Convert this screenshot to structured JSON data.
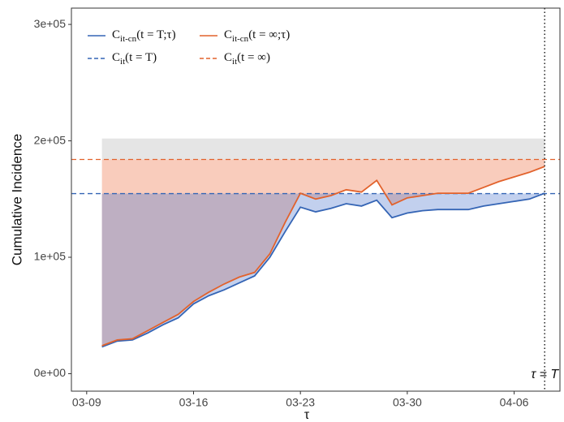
{
  "chart_data": {
    "type": "line",
    "x_label": "τ",
    "y_label": "Cumulative Incidence",
    "x": [
      "03-10",
      "03-11",
      "03-12",
      "03-13",
      "03-14",
      "03-15",
      "03-16",
      "03-17",
      "03-18",
      "03-19",
      "03-20",
      "03-21",
      "03-22",
      "03-23",
      "03-24",
      "03-25",
      "03-26",
      "03-27",
      "03-28",
      "03-29",
      "03-30",
      "03-31",
      "04-01",
      "04-02",
      "04-03",
      "04-04",
      "04-05",
      "04-06",
      "04-07",
      "04-08"
    ],
    "xlim": [
      "03-08",
      "04-09"
    ],
    "xticks": [
      "03-09",
      "03-16",
      "03-23",
      "03-30",
      "04-06"
    ],
    "ylim": [
      -15000,
      314000
    ],
    "yticks": [
      {
        "value": 0,
        "label": "0e+00"
      },
      {
        "value": 100000,
        "label": "1e+05"
      },
      {
        "value": 200000,
        "label": "2e+05"
      },
      {
        "value": 300000,
        "label": "3e+05"
      }
    ],
    "series": [
      {
        "name": [
          "C",
          "it-cn",
          "(t = T;τ)"
        ],
        "color": "#3565b5",
        "fill": "rgba(80,120,205,0.35)",
        "values": [
          23000,
          28000,
          29000,
          35000,
          42000,
          48000,
          60000,
          67000,
          72000,
          78000,
          84000,
          100000,
          122000,
          143000,
          139000,
          142000,
          146000,
          144000,
          149000,
          134000,
          138000,
          140000,
          141000,
          141000,
          141000,
          144000,
          146000,
          148000,
          150000,
          155000
        ]
      },
      {
        "name": [
          "C",
          "it-cn",
          "(t = ∞;τ)"
        ],
        "color": "#e2622c",
        "fill": "rgba(240,120,80,0.38)",
        "values": [
          24000,
          29000,
          30000,
          37000,
          44000,
          51000,
          62000,
          70000,
          77000,
          83000,
          87000,
          103000,
          130000,
          155000,
          150000,
          153000,
          158000,
          156000,
          166000,
          145000,
          151000,
          153000,
          155000,
          155000,
          155000,
          160000,
          165000,
          169000,
          173000,
          178000
        ]
      }
    ],
    "reference_lines": [
      {
        "name": [
          "C",
          "it",
          "(t = T)"
        ],
        "color": "#3565b5",
        "value": 154700
      },
      {
        "name": [
          "C",
          "it",
          "(t = ∞)"
        ],
        "color": "#e2622c",
        "value": 184000
      }
    ],
    "band": {
      "values": [
        184000,
        202000
      ],
      "color": "rgba(170,170,170,0.3)"
    },
    "vline": {
      "x": "04-08",
      "label": "τ = T"
    }
  }
}
